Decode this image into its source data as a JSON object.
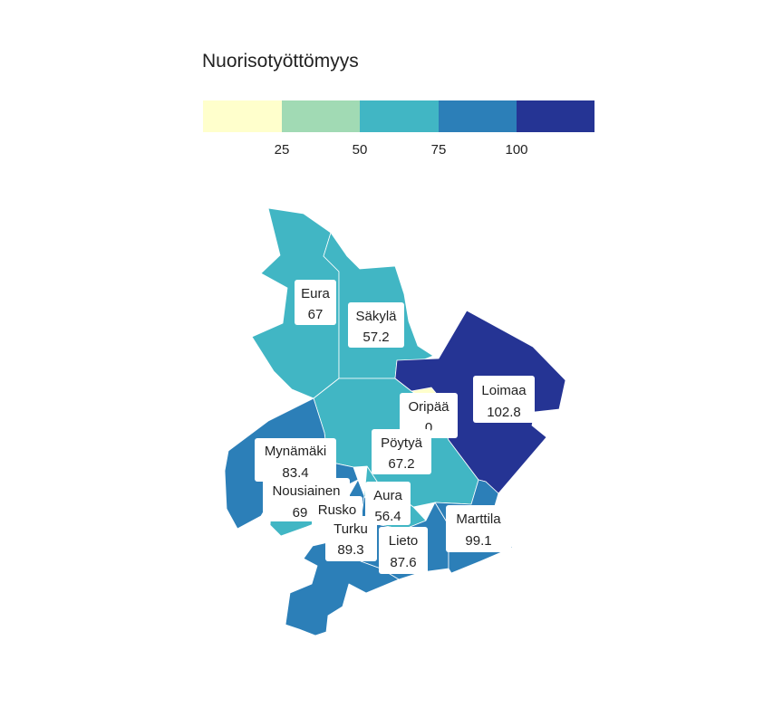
{
  "legend": {
    "title": "Nuorisotyöttömyys",
    "ticks": [
      "25",
      "50",
      "75",
      "100"
    ],
    "bins": [
      {
        "color": "#ffffcc"
      },
      {
        "color": "#a1dab4"
      },
      {
        "color": "#41b6c4"
      },
      {
        "color": "#2c7fb8"
      },
      {
        "color": "#253494"
      }
    ]
  },
  "municipalities": [
    {
      "id": "eura",
      "name": "Eura",
      "value": "67",
      "color": "#41b6c4"
    },
    {
      "id": "sakyla",
      "name": "Säkylä",
      "value": "57.2",
      "color": "#41b6c4"
    },
    {
      "id": "loimaa",
      "name": "Loimaa",
      "value": "102.8",
      "color": "#253494"
    },
    {
      "id": "oripaa",
      "name": "Oripää",
      "value": "0",
      "color": "#ffffcc"
    },
    {
      "id": "poytya",
      "name": "Pöytyä",
      "value": "67.2",
      "color": "#41b6c4"
    },
    {
      "id": "mynamaki",
      "name": "Mynämäki",
      "value": "83.4",
      "color": "#2c7fb8"
    },
    {
      "id": "nousiainen",
      "name": "Nousiainen",
      "value": "69",
      "color": "#41b6c4"
    },
    {
      "id": "rusko",
      "name": "Rusko",
      "value": "",
      "color": "#2c7fb8"
    },
    {
      "id": "aura",
      "name": "Aura",
      "value": "56.4",
      "color": "#41b6c4"
    },
    {
      "id": "turku",
      "name": "Turku",
      "value": "89.3",
      "color": "#2c7fb8"
    },
    {
      "id": "lieto",
      "name": "Lieto",
      "value": "87.6",
      "color": "#2c7fb8"
    },
    {
      "id": "marttila",
      "name": "Marttila",
      "value": "99.1",
      "color": "#2c7fb8"
    }
  ]
}
